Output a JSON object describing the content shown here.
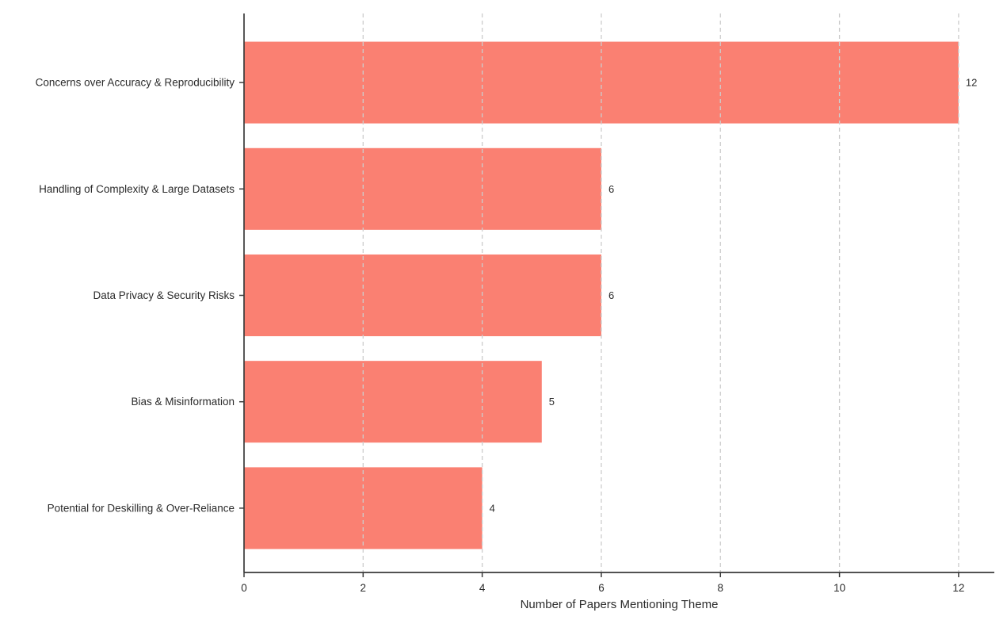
{
  "chart_data": {
    "type": "bar",
    "orientation": "horizontal",
    "title": "",
    "categories": [
      "Concerns over Accuracy & Reproducibility",
      "Handling of Complexity & Large Datasets",
      "Data Privacy & Security Risks",
      "Bias & Misinformation",
      "Potential for Deskilling & Over-Reliance"
    ],
    "values": [
      12,
      6,
      6,
      5,
      4
    ],
    "value_labels": [
      "12",
      "6",
      "6",
      "5",
      "4"
    ],
    "xlabel": "Number of Papers Mentioning Theme",
    "ylabel": "",
    "xlim": [
      0,
      12.6
    ],
    "xticks": [
      0,
      2,
      4,
      6,
      8,
      10,
      12
    ],
    "xtick_labels": [
      "0",
      "2",
      "4",
      "6",
      "8",
      "10",
      "12"
    ],
    "grid": "vertical-dashed",
    "legend": "none"
  },
  "colors": {
    "bar": "#FA8072",
    "gridline": "#cccccc",
    "axis": "#3a3a3a",
    "text": "#2b2b2b",
    "background": "#ffffff"
  }
}
